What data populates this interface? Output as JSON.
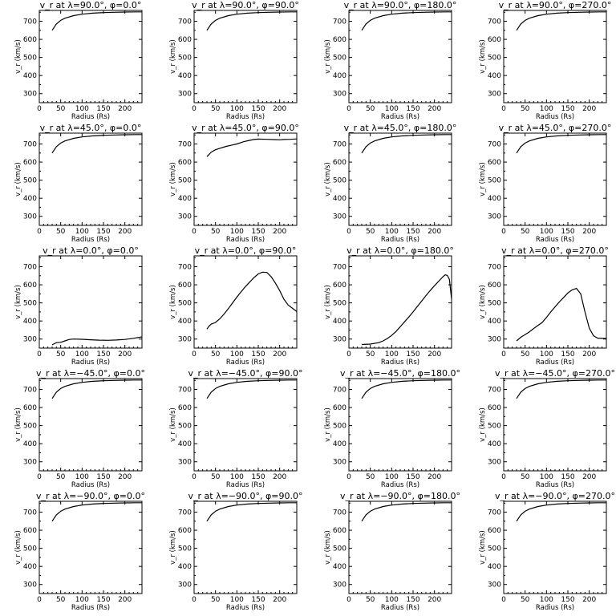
{
  "chart_data": [
    {
      "type": "line",
      "title": "v_r at λ=90.0°, φ=0.0°",
      "xlabel": "Radius (Rs)",
      "ylabel": "v_r (km/s)",
      "xlim": [
        0,
        240
      ],
      "ylim": [
        250,
        760
      ],
      "xticks": [
        0,
        50,
        100,
        150,
        200
      ],
      "yticks": [
        300,
        400,
        500,
        600,
        700
      ],
      "series": [
        {
          "x": [
            30,
            40,
            50,
            60,
            80,
            100,
            125,
            150,
            175,
            200,
            225,
            240
          ],
          "y": [
            650,
            685,
            705,
            717,
            731,
            739,
            745,
            748,
            750,
            751,
            752,
            752
          ]
        }
      ]
    },
    {
      "type": "line",
      "title": "v_r at λ=90.0°, φ=90.0°",
      "xlabel": "Radius (Rs)",
      "ylabel": "v_r (km/s)",
      "xlim": [
        0,
        240
      ],
      "ylim": [
        250,
        760
      ],
      "xticks": [
        0,
        50,
        100,
        150,
        200
      ],
      "yticks": [
        300,
        400,
        500,
        600,
        700
      ],
      "series": [
        {
          "x": [
            30,
            40,
            50,
            60,
            80,
            100,
            125,
            150,
            175,
            200,
            225,
            240
          ],
          "y": [
            650,
            685,
            705,
            717,
            731,
            739,
            745,
            748,
            750,
            751,
            752,
            752
          ]
        }
      ]
    },
    {
      "type": "line",
      "title": "v_r at λ=90.0°, φ=180.0°",
      "xlabel": "Radius (Rs)",
      "ylabel": "v_r (km/s)",
      "xlim": [
        0,
        240
      ],
      "ylim": [
        250,
        760
      ],
      "xticks": [
        0,
        50,
        100,
        150,
        200
      ],
      "yticks": [
        300,
        400,
        500,
        600,
        700
      ],
      "series": [
        {
          "x": [
            30,
            40,
            50,
            60,
            80,
            100,
            125,
            150,
            175,
            200,
            225,
            240
          ],
          "y": [
            650,
            685,
            705,
            717,
            731,
            739,
            745,
            748,
            750,
            751,
            752,
            752
          ]
        }
      ]
    },
    {
      "type": "line",
      "title": "v_r at λ=90.0°, φ=270.0°",
      "xlabel": "Radius (Rs)",
      "ylabel": "v_r (km/s)",
      "xlim": [
        0,
        240
      ],
      "ylim": [
        250,
        760
      ],
      "xticks": [
        0,
        50,
        100,
        150,
        200
      ],
      "yticks": [
        300,
        400,
        500,
        600,
        700
      ],
      "series": [
        {
          "x": [
            30,
            40,
            50,
            60,
            80,
            100,
            125,
            150,
            175,
            200,
            225,
            240
          ],
          "y": [
            650,
            685,
            705,
            717,
            731,
            739,
            745,
            748,
            750,
            751,
            752,
            752
          ]
        }
      ]
    },
    {
      "type": "line",
      "title": "v_r at λ=45.0°, φ=0.0°",
      "xlabel": "Radius (Rs)",
      "ylabel": "v_r (km/s)",
      "xlim": [
        0,
        240
      ],
      "ylim": [
        250,
        760
      ],
      "xticks": [
        0,
        50,
        100,
        150,
        200
      ],
      "yticks": [
        300,
        400,
        500,
        600,
        700
      ],
      "series": [
        {
          "x": [
            30,
            40,
            50,
            60,
            80,
            100,
            125,
            150,
            175,
            200,
            225,
            240
          ],
          "y": [
            650,
            685,
            705,
            717,
            731,
            739,
            745,
            748,
            750,
            751,
            752,
            752
          ]
        }
      ]
    },
    {
      "type": "line",
      "title": "v_r at λ=45.0°, φ=90.0°",
      "xlabel": "Radius (Rs)",
      "ylabel": "v_r (km/s)",
      "xlim": [
        0,
        240
      ],
      "ylim": [
        250,
        760
      ],
      "xticks": [
        0,
        50,
        100,
        150,
        200
      ],
      "yticks": [
        300,
        400,
        500,
        600,
        700
      ],
      "series": [
        {
          "x": [
            30,
            40,
            50,
            60,
            75,
            90,
            100,
            115,
            125,
            140,
            150,
            170,
            190,
            200,
            210,
            225,
            240
          ],
          "y": [
            630,
            655,
            668,
            676,
            687,
            695,
            700,
            712,
            718,
            725,
            727,
            726,
            724,
            723,
            725,
            726,
            728
          ]
        }
      ]
    },
    {
      "type": "line",
      "title": "v_r at λ=45.0°, φ=180.0°",
      "xlabel": "Radius (Rs)",
      "ylabel": "v_r (km/s)",
      "xlim": [
        0,
        240
      ],
      "ylim": [
        250,
        760
      ],
      "xticks": [
        0,
        50,
        100,
        150,
        200
      ],
      "yticks": [
        300,
        400,
        500,
        600,
        700
      ],
      "series": [
        {
          "x": [
            30,
            40,
            50,
            60,
            80,
            100,
            125,
            150,
            175,
            200,
            225,
            240
          ],
          "y": [
            650,
            685,
            705,
            717,
            731,
            739,
            745,
            748,
            750,
            751,
            752,
            752
          ]
        }
      ]
    },
    {
      "type": "line",
      "title": "v_r at λ=45.0°, φ=270.0°",
      "xlabel": "Radius (Rs)",
      "ylabel": "v_r (km/s)",
      "xlim": [
        0,
        240
      ],
      "ylim": [
        250,
        760
      ],
      "xticks": [
        0,
        50,
        100,
        150,
        200
      ],
      "yticks": [
        300,
        400,
        500,
        600,
        700
      ],
      "series": [
        {
          "x": [
            30,
            40,
            50,
            60,
            80,
            100,
            125,
            150,
            175,
            200,
            225,
            240
          ],
          "y": [
            650,
            685,
            705,
            717,
            731,
            739,
            745,
            748,
            750,
            751,
            752,
            752
          ]
        }
      ]
    },
    {
      "type": "line",
      "title": "v_r at λ=0.0°, φ=0.0°",
      "xlabel": "Radius (Rs)",
      "ylabel": "v_r (km/s)",
      "xlim": [
        0,
        240
      ],
      "ylim": [
        250,
        760
      ],
      "xticks": [
        0,
        50,
        100,
        150,
        200
      ],
      "yticks": [
        300,
        400,
        500,
        600,
        700
      ],
      "series": [
        {
          "x": [
            30,
            40,
            50,
            60,
            70,
            80,
            100,
            120,
            140,
            160,
            180,
            200,
            220,
            240
          ],
          "y": [
            268,
            280,
            282,
            290,
            298,
            300,
            299,
            296,
            294,
            293,
            295,
            298,
            304,
            312
          ]
        }
      ]
    },
    {
      "type": "line",
      "title": "v_r at λ=0.0°, φ=90.0°",
      "xlabel": "Radius (Rs)",
      "ylabel": "v_r (km/s)",
      "xlim": [
        0,
        240
      ],
      "ylim": [
        250,
        760
      ],
      "xticks": [
        0,
        50,
        100,
        150,
        200
      ],
      "yticks": [
        300,
        400,
        500,
        600,
        700
      ],
      "series": [
        {
          "x": [
            30,
            35,
            40,
            50,
            60,
            70,
            80,
            90,
            100,
            110,
            120,
            130,
            140,
            150,
            160,
            170,
            180,
            190,
            200,
            210,
            220,
            230,
            240
          ],
          "y": [
            355,
            372,
            382,
            392,
            412,
            438,
            468,
            500,
            532,
            562,
            590,
            615,
            640,
            660,
            670,
            668,
            645,
            610,
            568,
            520,
            488,
            470,
            452
          ]
        }
      ]
    },
    {
      "type": "line",
      "title": "v_r at λ=0.0°, φ=180.0°",
      "xlabel": "Radius (Rs)",
      "ylabel": "v_r (km/s)",
      "xlim": [
        0,
        240
      ],
      "ylim": [
        250,
        760
      ],
      "xticks": [
        0,
        50,
        100,
        150,
        200
      ],
      "yticks": [
        300,
        400,
        500,
        600,
        700
      ],
      "series": [
        {
          "x": [
            30,
            50,
            70,
            80,
            90,
            100,
            110,
            120,
            130,
            140,
            150,
            160,
            170,
            180,
            190,
            200,
            210,
            220,
            225,
            230,
            235,
            240
          ],
          "y": [
            270,
            272,
            280,
            290,
            303,
            320,
            342,
            368,
            395,
            422,
            450,
            480,
            510,
            540,
            568,
            595,
            620,
            645,
            655,
            652,
            630,
            520
          ]
        }
      ]
    },
    {
      "type": "line",
      "title": "v_r at λ=0.0°, φ=270.0°",
      "xlabel": "Radius (Rs)",
      "ylabel": "v_r (km/s)",
      "xlim": [
        0,
        240
      ],
      "ylim": [
        250,
        760
      ],
      "xticks": [
        0,
        50,
        100,
        150,
        200
      ],
      "yticks": [
        300,
        400,
        500,
        600,
        700
      ],
      "series": [
        {
          "x": [
            30,
            40,
            50,
            60,
            70,
            80,
            90,
            100,
            110,
            120,
            130,
            140,
            150,
            160,
            170,
            180,
            190,
            200,
            210,
            220,
            240
          ],
          "y": [
            290,
            310,
            325,
            340,
            358,
            375,
            392,
            420,
            450,
            478,
            505,
            530,
            555,
            572,
            580,
            550,
            450,
            360,
            318,
            305,
            303
          ]
        }
      ]
    },
    {
      "type": "line",
      "title": "v_r at λ=−45.0°, φ=0.0°",
      "xlabel": "Radius (Rs)",
      "ylabel": "v_r (km/s)",
      "xlim": [
        0,
        240
      ],
      "ylim": [
        250,
        760
      ],
      "xticks": [
        0,
        50,
        100,
        150,
        200
      ],
      "yticks": [
        300,
        400,
        500,
        600,
        700
      ],
      "series": [
        {
          "x": [
            30,
            40,
            50,
            60,
            80,
            100,
            125,
            150,
            175,
            200,
            225,
            240
          ],
          "y": [
            650,
            685,
            705,
            717,
            731,
            739,
            745,
            748,
            750,
            751,
            752,
            752
          ]
        }
      ]
    },
    {
      "type": "line",
      "title": "v_r at λ=−45.0°, φ=90.0°",
      "xlabel": "Radius (Rs)",
      "ylabel": "v_r (km/s)",
      "xlim": [
        0,
        240
      ],
      "ylim": [
        250,
        760
      ],
      "xticks": [
        0,
        50,
        100,
        150,
        200
      ],
      "yticks": [
        300,
        400,
        500,
        600,
        700
      ],
      "series": [
        {
          "x": [
            30,
            40,
            50,
            60,
            80,
            100,
            125,
            150,
            175,
            200,
            225,
            240
          ],
          "y": [
            650,
            685,
            705,
            717,
            731,
            739,
            745,
            748,
            750,
            751,
            752,
            752
          ]
        }
      ]
    },
    {
      "type": "line",
      "title": "v_r at λ=−45.0°, φ=180.0°",
      "xlabel": "Radius (Rs)",
      "ylabel": "v_r (km/s)",
      "xlim": [
        0,
        240
      ],
      "ylim": [
        250,
        760
      ],
      "xticks": [
        0,
        50,
        100,
        150,
        200
      ],
      "yticks": [
        300,
        400,
        500,
        600,
        700
      ],
      "series": [
        {
          "x": [
            30,
            40,
            50,
            60,
            80,
            100,
            125,
            150,
            175,
            200,
            225,
            240
          ],
          "y": [
            650,
            685,
            705,
            717,
            731,
            739,
            745,
            748,
            750,
            751,
            752,
            752
          ]
        }
      ]
    },
    {
      "type": "line",
      "title": "v_r at λ=−45.0°, φ=270.0°",
      "xlabel": "Radius (Rs)",
      "ylabel": "v_r (km/s)",
      "xlim": [
        0,
        240
      ],
      "ylim": [
        250,
        760
      ],
      "xticks": [
        0,
        50,
        100,
        150,
        200
      ],
      "yticks": [
        300,
        400,
        500,
        600,
        700
      ],
      "series": [
        {
          "x": [
            30,
            40,
            50,
            60,
            80,
            100,
            125,
            150,
            175,
            200,
            225,
            240
          ],
          "y": [
            650,
            685,
            705,
            717,
            731,
            739,
            745,
            748,
            750,
            751,
            752,
            752
          ]
        }
      ]
    },
    {
      "type": "line",
      "title": "v_r at λ=−90.0°, φ=0.0°",
      "xlabel": "Radius (Rs)",
      "ylabel": "v_r (km/s)",
      "xlim": [
        0,
        240
      ],
      "ylim": [
        250,
        760
      ],
      "xticks": [
        0,
        50,
        100,
        150,
        200
      ],
      "yticks": [
        300,
        400,
        500,
        600,
        700
      ],
      "series": [
        {
          "x": [
            30,
            40,
            50,
            60,
            80,
            100,
            125,
            150,
            175,
            200,
            225,
            240
          ],
          "y": [
            650,
            685,
            705,
            717,
            731,
            739,
            745,
            748,
            750,
            751,
            752,
            752
          ]
        }
      ]
    },
    {
      "type": "line",
      "title": "v_r at λ=−90.0°, φ=90.0°",
      "xlabel": "Radius (Rs)",
      "ylabel": "v_r (km/s)",
      "xlim": [
        0,
        240
      ],
      "ylim": [
        250,
        760
      ],
      "xticks": [
        0,
        50,
        100,
        150,
        200
      ],
      "yticks": [
        300,
        400,
        500,
        600,
        700
      ],
      "series": [
        {
          "x": [
            30,
            40,
            50,
            60,
            80,
            100,
            125,
            150,
            175,
            200,
            225,
            240
          ],
          "y": [
            650,
            685,
            705,
            717,
            731,
            739,
            745,
            748,
            750,
            751,
            752,
            752
          ]
        }
      ]
    },
    {
      "type": "line",
      "title": "v_r at λ=−90.0°, φ=180.0°",
      "xlabel": "Radius (Rs)",
      "ylabel": "v_r (km/s)",
      "xlim": [
        0,
        240
      ],
      "ylim": [
        250,
        760
      ],
      "xticks": [
        0,
        50,
        100,
        150,
        200
      ],
      "yticks": [
        300,
        400,
        500,
        600,
        700
      ],
      "series": [
        {
          "x": [
            30,
            40,
            50,
            60,
            80,
            100,
            125,
            150,
            175,
            200,
            225,
            240
          ],
          "y": [
            650,
            685,
            705,
            717,
            731,
            739,
            745,
            748,
            750,
            751,
            752,
            752
          ]
        }
      ]
    },
    {
      "type": "line",
      "title": "v_r at λ=−90.0°, φ=270.0°",
      "xlabel": "Radius (Rs)",
      "ylabel": "v_r (km/s)",
      "xlim": [
        0,
        240
      ],
      "ylim": [
        250,
        760
      ],
      "xticks": [
        0,
        50,
        100,
        150,
        200
      ],
      "yticks": [
        300,
        400,
        500,
        600,
        700
      ],
      "series": [
        {
          "x": [
            30,
            40,
            50,
            60,
            80,
            100,
            125,
            150,
            175,
            200,
            225,
            240
          ],
          "y": [
            650,
            685,
            705,
            717,
            731,
            739,
            745,
            748,
            750,
            751,
            752,
            752
          ]
        }
      ]
    }
  ]
}
